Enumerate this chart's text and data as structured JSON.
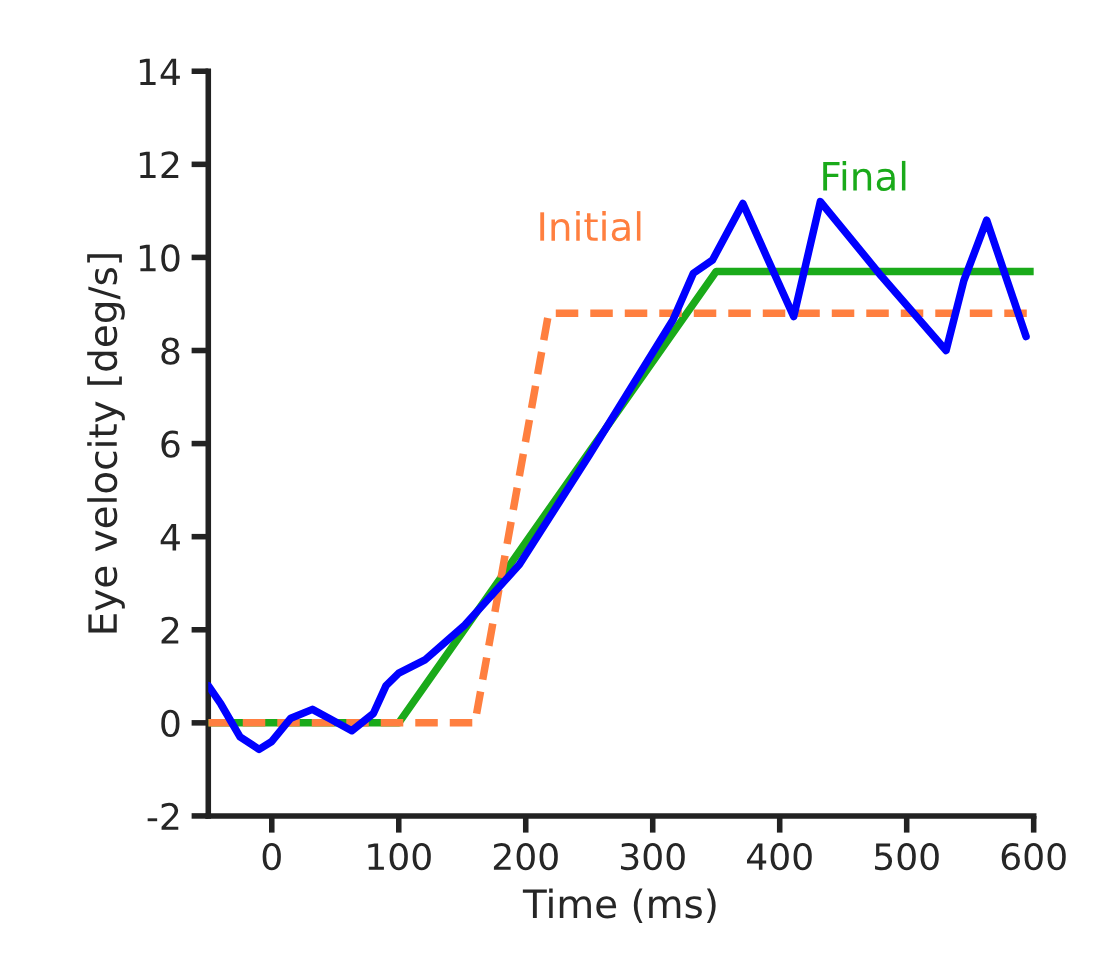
{
  "chart_data": {
    "type": "line",
    "xlabel": "Time (ms)",
    "ylabel": "Eye velocity [deg/s]",
    "xlim": [
      -50,
      600
    ],
    "xticks": [
      0,
      100,
      200,
      300,
      400,
      500,
      600
    ],
    "ylim": [
      -2,
      14
    ],
    "yticks": [
      -2,
      0,
      2,
      4,
      6,
      8,
      10,
      12,
      14
    ],
    "grid": false,
    "legend": false,
    "marker": "none",
    "series": [
      {
        "color": "#0000ff",
        "line_style": "solid",
        "x": [
          -50,
          -40,
          -25,
          -10,
          0,
          15,
          32,
          45,
          63,
          80,
          90,
          100,
          121,
          152,
          195,
          250,
          316,
          332,
          347,
          371,
          390,
          411,
          432,
          480,
          531,
          545,
          563,
          594
        ],
        "values": [
          0.8,
          0.4,
          -0.3,
          -0.57,
          -0.4,
          0.1,
          0.29,
          0.1,
          -0.17,
          0.2,
          0.8,
          1.07,
          1.36,
          2.1,
          3.4,
          5.75,
          8.66,
          9.66,
          9.94,
          11.16,
          10.0,
          8.73,
          11.2,
          9.6,
          8.0,
          9.5,
          10.8,
          8.3
        ]
      },
      {
        "name": "Initial",
        "color": "#ff7f3f",
        "line_style": "dashed",
        "x": [
          -50,
          160,
          218,
          600
        ],
        "values": [
          0,
          0,
          8.8,
          8.8
        ]
      },
      {
        "name": "Final",
        "color": "#1aaa1a",
        "line_style": "solid",
        "x": [
          -50,
          100,
          350,
          600
        ],
        "values": [
          0,
          0,
          9.7,
          9.7
        ]
      }
    ]
  }
}
